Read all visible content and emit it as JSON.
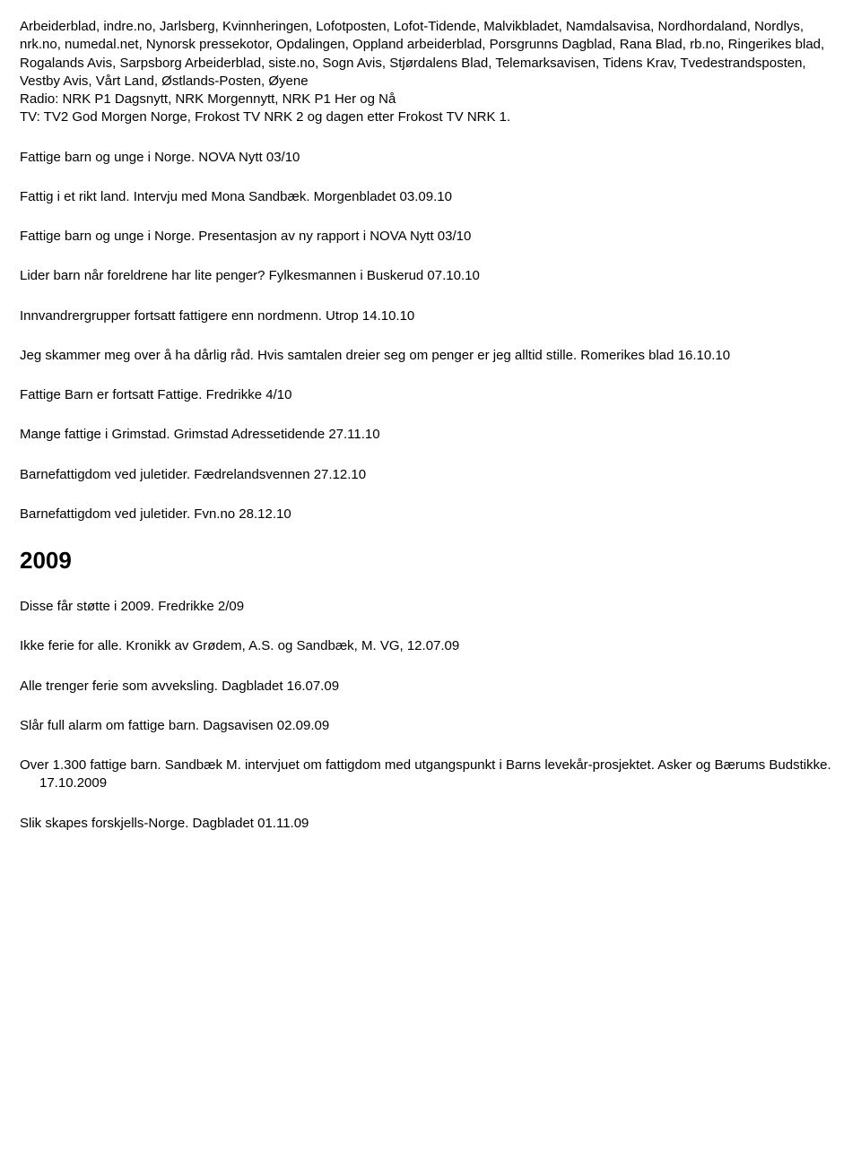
{
  "intro_block": {
    "line1": "Arbeiderblad, indre.no, Jarlsberg, Kvinnheringen, Lofotposten, Lofot-Tidende, Malvikbladet, Namdalsavisa, Nordhordaland, Nordlys, nrk.no, numedal.net, Nynorsk pressekotor, Opdalingen, Oppland arbeiderblad, Porsgrunns Dagblad, Rana Blad, rb.no, Ringerikes blad, Rogalands Avis, Sarpsborg Arbeiderblad, siste.no, Sogn Avis, Stjørdalens Blad, Telemarksavisen, Tidens Krav, Tvedestrandsposten, Vestby Avis, Vårt Land, Østlands-Posten, Øyene",
    "line2": "Radio: NRK P1 Dagsnytt, NRK Morgennytt, NRK P1 Her og Nå",
    "line3": "TV: TV2 God Morgen Norge, Frokost TV NRK 2 og dagen etter Frokost TV NRK 1."
  },
  "entries_2010": [
    "Fattige barn og unge i Norge. NOVA Nytt 03/10",
    "Fattig i et rikt land. Intervju med Mona Sandbæk. Morgenbladet 03.09.10",
    "Fattige barn og unge i Norge. Presentasjon av ny rapport i NOVA Nytt 03/10",
    "Lider barn når foreldrene har lite penger? Fylkesmannen i Buskerud 07.10.10",
    "Innvandrergrupper fortsatt fattigere enn nordmenn. Utrop 14.10.10",
    "Jeg skammer meg over å ha dårlig råd. Hvis samtalen dreier seg om penger er jeg alltid stille. Romerikes blad 16.10.10",
    "Fattige Barn er fortsatt Fattige. Fredrikke 4/10",
    "Mange fattige i Grimstad. Grimstad Adressetidende 27.11.10",
    "Barnefattigdom ved juletider. Fædrelandsvennen 27.12.10",
    "Barnefattigdom ved juletider. Fvn.no 28.12.10"
  ],
  "year_heading": "2009",
  "entries_2009": [
    "Disse får støtte i 2009. Fredrikke 2/09",
    "Ikke ferie for alle. Kronikk av Grødem, A.S. og Sandbæk, M. VG, 12.07.09",
    "Alle trenger ferie som avveksling. Dagbladet 16.07.09",
    "Slår full alarm om fattige barn. Dagsavisen 02.09.09",
    "Over 1.300 fattige barn. Sandbæk M. intervjuet om fattigdom med utgangspunkt i Barns levekår-prosjektet. Asker og Bærums Budstikke. 17.10.2009",
    "Slik skapes forskjells-Norge. Dagbladet 01.11.09"
  ]
}
